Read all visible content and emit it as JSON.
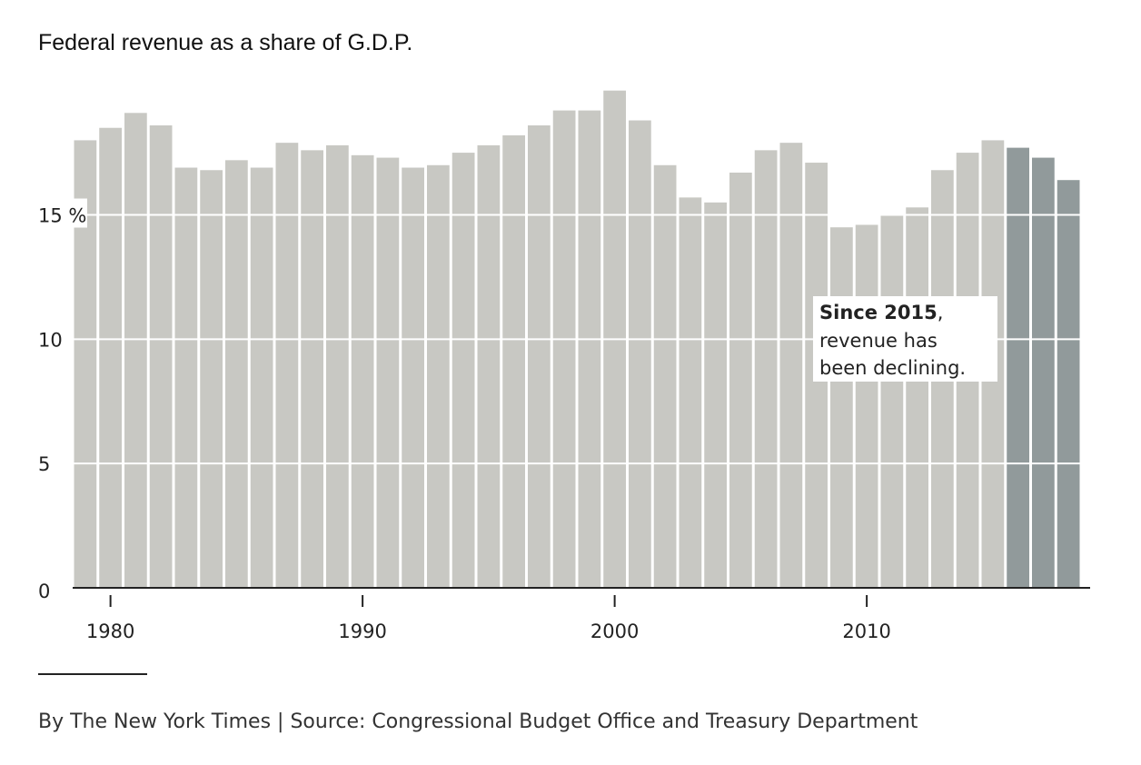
{
  "chart_data": {
    "type": "bar",
    "title": "Federal revenue as a share of G.D.P.",
    "xlabel": "",
    "ylabel": "",
    "x": [
      1979,
      1980,
      1981,
      1982,
      1983,
      1984,
      1985,
      1986,
      1987,
      1988,
      1989,
      1990,
      1991,
      1992,
      1993,
      1994,
      1995,
      1996,
      1997,
      1998,
      1999,
      2000,
      2001,
      2002,
      2003,
      2004,
      2005,
      2006,
      2007,
      2008,
      2009,
      2010,
      2011,
      2012,
      2013,
      2014,
      2015,
      2016,
      2017,
      2018
    ],
    "values": [
      18.0,
      18.5,
      19.1,
      18.6,
      16.9,
      16.8,
      17.2,
      16.9,
      17.9,
      17.6,
      17.8,
      17.4,
      17.3,
      16.9,
      17.0,
      17.5,
      17.8,
      18.2,
      18.6,
      19.2,
      19.2,
      20.0,
      18.8,
      17.0,
      15.7,
      15.5,
      16.7,
      17.6,
      17.9,
      17.1,
      14.5,
      14.6,
      15.0,
      15.3,
      16.8,
      17.5,
      18.0,
      17.7,
      17.3,
      16.4
    ],
    "highlight_from": 2016,
    "ylim": [
      0,
      20.5
    ],
    "xlim": [
      1978.5,
      2018.5
    ],
    "yticks": [
      0,
      5,
      10,
      15
    ],
    "ytick_labels": [
      "0",
      "5",
      "10",
      "15 %"
    ],
    "xticks": [
      1980,
      1990,
      2000,
      2010
    ],
    "xtick_labels": [
      "1980",
      "1990",
      "2000",
      "2010"
    ],
    "grid": true,
    "colors": {
      "bar": "#c8c8c3",
      "highlight": "#919a9b",
      "gridline": "#ffffff",
      "axis": "#222222"
    },
    "annotation": {
      "bold": "Since 2015",
      "bold_suffix": ",",
      "lines": [
        "revenue has",
        "been declining."
      ]
    }
  },
  "footer": {
    "credit": "By The New York Times | Source: Congressional Budget Office and Treasury Department"
  }
}
